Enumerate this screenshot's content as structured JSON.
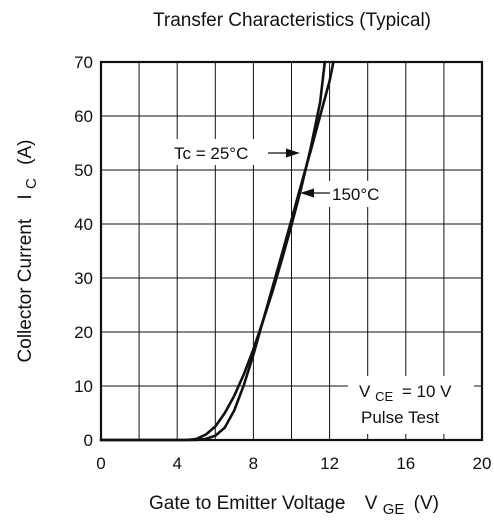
{
  "chart_data": {
    "type": "line",
    "title": "Transfer Characteristics (Typical)",
    "xlabel": {
      "main": "Gate to Emitter Voltage",
      "symbol": "V",
      "subscript": "GE",
      "unit": "(V)"
    },
    "ylabel": {
      "main": "Collector Current",
      "symbol": "I",
      "subscript": "C",
      "unit": "(A)"
    },
    "xlim": [
      0,
      20
    ],
    "ylim": [
      0,
      70
    ],
    "xticks": [
      "0",
      "4",
      "8",
      "12",
      "16",
      "20"
    ],
    "yticks": [
      "0",
      "10",
      "20",
      "30",
      "40",
      "50",
      "60",
      "70"
    ],
    "grid": true,
    "series": [
      {
        "name": "Tc = 25°C",
        "x": [
          0,
          4.5,
          5.0,
          5.5,
          6.0,
          6.5,
          7.0,
          7.5,
          8.0,
          8.5,
          9.0,
          9.5,
          10.0,
          10.5,
          11.0,
          11.5,
          11.75
        ],
        "y": [
          0,
          0,
          0.2,
          1.0,
          2.5,
          5.0,
          8.2,
          12.2,
          16.8,
          22.0,
          27.5,
          33.5,
          39.8,
          46.5,
          54.0,
          62.5,
          70
        ]
      },
      {
        "name": "150°C",
        "x": [
          0,
          5.0,
          5.5,
          6.0,
          6.5,
          7.0,
          7.5,
          8.0,
          8.5,
          9.0,
          9.5,
          10.0,
          10.5,
          11.0,
          11.5,
          12.0,
          12.2
        ],
        "y": [
          0,
          0,
          0.2,
          0.8,
          2.3,
          5.5,
          10.2,
          15.8,
          22.0,
          28.3,
          34.5,
          40.8,
          47.2,
          53.5,
          60.0,
          66.5,
          70
        ]
      }
    ],
    "annotations": {
      "tc25_label": "Tc = 25°C",
      "tc150_label": "150°C",
      "test_vce_symbol": "V",
      "test_vce_sub": "CE",
      "test_vce_value": "= 10 V",
      "test_mode": "Pulse Test"
    }
  }
}
